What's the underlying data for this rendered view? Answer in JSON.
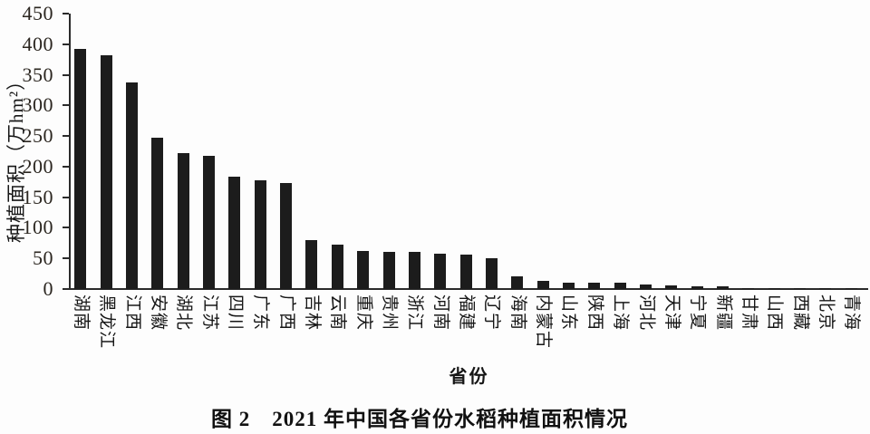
{
  "figure": {
    "caption": "图 2　2021 年中国各省份水稻种植面积情况",
    "x_axis_title": "省份",
    "y_axis_title": "种植面积（万hm²）"
  },
  "chart_data": {
    "type": "bar",
    "title": "图 2 2021 年中国各省份水稻种植面积情况",
    "xlabel": "省份",
    "ylabel": "种植面积（万hm²）",
    "ylim": [
      0,
      450
    ],
    "ytick_interval": 50,
    "ytick_labels": [
      "0",
      "50",
      "100",
      "150",
      "200",
      "250",
      "300",
      "350",
      "400",
      "450"
    ],
    "grid": false,
    "legend": "none",
    "bar_color": "#1c1c1c",
    "categories": [
      "湖南",
      "黑龙江",
      "江西",
      "安徽",
      "湖北",
      "江苏",
      "四川",
      "广东",
      "广西",
      "吉林",
      "云南",
      "重庆",
      "贵州",
      "浙江",
      "河南",
      "福建",
      "辽宁",
      "海南",
      "内蒙古",
      "山东",
      "陕西",
      "上海",
      "河北",
      "天津",
      "宁夏",
      "新疆",
      "甘肃",
      "山西",
      "西藏",
      "北京",
      "青海"
    ],
    "values": [
      392,
      382,
      338,
      247,
      222,
      218,
      184,
      178,
      173,
      80,
      73,
      62,
      61,
      60,
      57,
      56,
      50,
      21,
      14,
      11,
      10,
      10,
      8,
      6,
      5,
      4,
      2,
      2,
      1.5,
      1,
      0.3
    ]
  }
}
